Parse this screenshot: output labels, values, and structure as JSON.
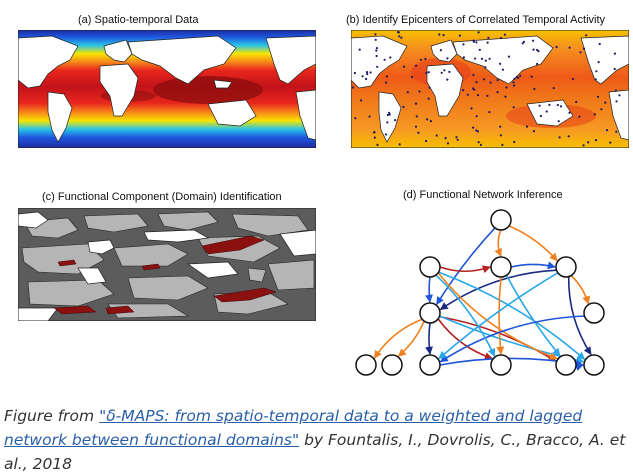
{
  "panels": {
    "a": {
      "title": "(a) Spatio-temporal Data"
    },
    "b": {
      "title": "(b) Identify Epicenters of Correlated Temporal Activity"
    },
    "c": {
      "title": "(c) Functional Component (Domain) Identification"
    },
    "d": {
      "title": "(d) Functional Network Inference"
    }
  },
  "caption": {
    "prefix": "Figure  from ",
    "link_text": "\"δ-MAPS: from spatio-temporal data to a weighted and lagged network between functional domains\"",
    "suffix": " by Fountalis, I., Dovrolis, C., Bracco, A. et al., 2018"
  },
  "colors": {
    "dark_red": "#8b0e0e",
    "red": "#e8261c",
    "orange": "#f77f1a",
    "yellow": "#f5e000",
    "cyan": "#29c4e8",
    "blue": "#1050d8",
    "navy": "#172b9e",
    "land": "#ffffff",
    "grey_domain": "#b4b4b4",
    "dark_grey": "#5a5a5a",
    "edge_blue": "#1f56d8",
    "edge_orange": "#f0801e",
    "edge_red": "#b52020",
    "edge_navy": "#1a2a80",
    "edge_cyan": "#2aa7e8"
  },
  "network": {
    "nodes": [
      "n0",
      "n1",
      "n2",
      "n3",
      "n4",
      "n5",
      "n6",
      "n7",
      "n8",
      "n9",
      "n10",
      "n11"
    ],
    "edges": [
      {
        "from": "n0",
        "to": "n2",
        "color": "edge_orange"
      },
      {
        "from": "n0",
        "to": "n3",
        "color": "edge_orange"
      },
      {
        "from": "n0",
        "to": "n4",
        "color": "edge_blue"
      },
      {
        "from": "n1",
        "to": "n2",
        "color": "edge_red"
      },
      {
        "from": "n2",
        "to": "n3",
        "color": "edge_blue"
      },
      {
        "from": "n1",
        "to": "n4",
        "color": "edge_blue"
      },
      {
        "from": "n3",
        "to": "n4",
        "color": "edge_navy"
      },
      {
        "from": "n1",
        "to": "n10",
        "color": "edge_cyan"
      },
      {
        "from": "n2",
        "to": "n9",
        "color": "edge_cyan"
      },
      {
        "from": "n3",
        "to": "n10",
        "color": "edge_navy"
      },
      {
        "from": "n3",
        "to": "n11",
        "color": "edge_orange"
      },
      {
        "from": "n4",
        "to": "n7",
        "color": "edge_navy"
      },
      {
        "from": "n4",
        "to": "n8",
        "color": "edge_red"
      },
      {
        "from": "n4",
        "to": "n9",
        "color": "edge_red"
      },
      {
        "from": "n4",
        "to": "n10",
        "color": "edge_cyan"
      },
      {
        "from": "n4",
        "to": "n5",
        "color": "edge_orange"
      },
      {
        "from": "n4",
        "to": "n6",
        "color": "edge_orange"
      },
      {
        "from": "n2",
        "to": "n8",
        "color": "edge_orange"
      },
      {
        "from": "n1",
        "to": "n9",
        "color": "edge_orange"
      },
      {
        "from": "n7",
        "to": "n10",
        "color": "edge_blue"
      },
      {
        "from": "n9",
        "to": "n10",
        "color": "edge_blue"
      },
      {
        "from": "n11",
        "to": "n7",
        "color": "edge_blue"
      },
      {
        "from": "n1",
        "to": "n8",
        "color": "edge_cyan"
      },
      {
        "from": "n3",
        "to": "n7",
        "color": "edge_cyan"
      }
    ]
  }
}
